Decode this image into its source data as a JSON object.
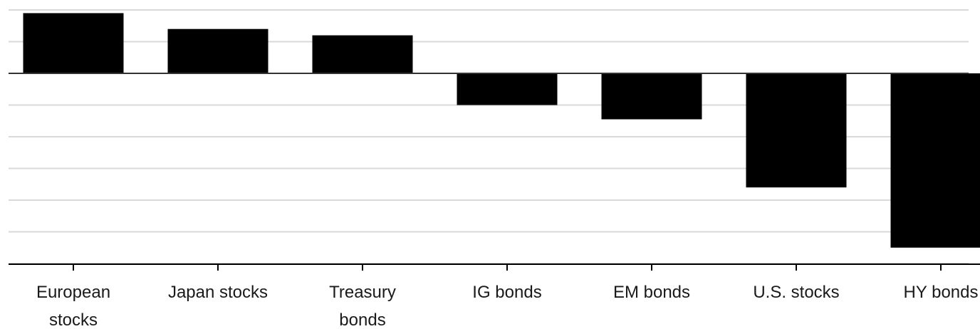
{
  "chart_data": {
    "type": "bar",
    "title": "",
    "xlabel": "",
    "ylabel": "",
    "categories": [
      [
        "European",
        "stocks"
      ],
      [
        "Japan stocks"
      ],
      [
        "Treasury",
        "bonds"
      ],
      [
        "IG bonds"
      ],
      [
        "EM bonds"
      ],
      [
        "U.S. stocks"
      ],
      [
        "HY bonds"
      ]
    ],
    "values": [
      1.9,
      1.4,
      1.2,
      -1.0,
      -1.45,
      -3.6,
      -5.5
    ],
    "ylim": [
      -6,
      2
    ],
    "grid": true,
    "colors": {
      "bar": "#000000",
      "grid": "#d9d9d9",
      "baseline": "#333333",
      "axis": "#000000",
      "text": "#1a1a1a"
    }
  }
}
